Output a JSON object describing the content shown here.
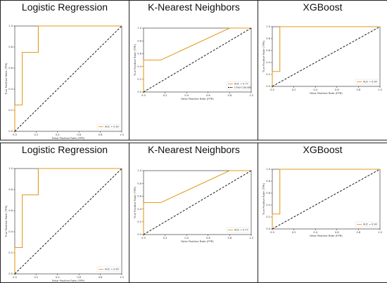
{
  "colors": {
    "roc": "#e59a1e",
    "chance": "#000000",
    "frame": "#222222"
  },
  "chart_data": [
    {
      "type": "line",
      "title": "Logistic Regression",
      "xlabel": "False Positive Rate (FPR)",
      "ylabel": "True Positive Rate (TPR)",
      "xlim": [
        0,
        1
      ],
      "ylim": [
        0,
        1
      ],
      "xticks": [
        "0.0",
        "0.2",
        "0.4",
        "0.6",
        "0.8",
        "1.0"
      ],
      "yticks": [
        "0.0",
        "0.2",
        "0.4",
        "0.6",
        "0.8",
        "1.0"
      ],
      "series": [
        {
          "name": "AUC = 0.90",
          "x": [
            0,
            0,
            0.07,
            0.07,
            0.22,
            0.22,
            1
          ],
          "y": [
            0,
            0.25,
            0.25,
            0.75,
            0.75,
            1.0,
            1.0
          ]
        },
        {
          "x": [
            0,
            1
          ],
          "y": [
            0,
            1
          ]
        }
      ],
      "legend": "lower-right",
      "grid": false
    },
    {
      "type": "line",
      "title": "K-Nearest Neighbors",
      "xlabel": "False Positive Rate (FPR)",
      "ylabel": "True Positive Rate (TPR)",
      "xlim": [
        0,
        1
      ],
      "ylim": [
        0,
        1
      ],
      "xticks": [
        "0.0",
        "0.2",
        "0.4",
        "0.6",
        "0.8",
        "1.0"
      ],
      "yticks": [
        "0.0",
        "0.2",
        "0.4",
        "0.6",
        "0.8",
        "1.0"
      ],
      "series": [
        {
          "name": "AUC = 0.77",
          "x": [
            0,
            0,
            0.16,
            0.8,
            1
          ],
          "y": [
            0,
            0.5,
            0.5,
            1.0,
            1.0
          ]
        },
        {
          "name": "Linea Casuale",
          "x": [
            0,
            1
          ],
          "y": [
            0,
            1
          ]
        }
      ],
      "legend": "lower-right",
      "grid": false
    },
    {
      "type": "line",
      "title": "XGBoost",
      "xlabel": "False Positive Rate (FPR)",
      "ylabel": "True Positive Rate (TPR)",
      "xlim": [
        0,
        1
      ],
      "ylim": [
        0,
        1
      ],
      "xticks": [
        "0.0",
        "0.2",
        "0.4",
        "0.6",
        "0.8",
        "1.0"
      ],
      "yticks": [
        "0.0",
        "0.2",
        "0.4",
        "0.6",
        "0.8",
        "1.0"
      ],
      "series": [
        {
          "name": "AUC = 0.94",
          "x": [
            0,
            0,
            0.07,
            0.07,
            1
          ],
          "y": [
            0,
            0.25,
            0.25,
            1.0,
            1.0
          ]
        },
        {
          "x": [
            0,
            1
          ],
          "y": [
            0,
            1
          ]
        }
      ],
      "legend": "lower-right",
      "grid": false
    },
    {
      "type": "line",
      "title": "Logistic Regression",
      "xlabel": "False Positive Rate (FPR)",
      "ylabel": "True Positive Rate (TPR)",
      "xlim": [
        0,
        1
      ],
      "ylim": [
        0,
        1
      ],
      "xticks": [
        "0.0",
        "0.2",
        "0.4",
        "0.6",
        "0.8",
        "1.0"
      ],
      "yticks": [
        "0.0",
        "0.2",
        "0.4",
        "0.6",
        "0.8",
        "1.0"
      ],
      "series": [
        {
          "name": "AUC = 0.90",
          "x": [
            0,
            0,
            0.07,
            0.07,
            0.22,
            0.22,
            1
          ],
          "y": [
            0,
            0.25,
            0.25,
            0.75,
            0.75,
            1.0,
            1.0
          ]
        },
        {
          "x": [
            0,
            1
          ],
          "y": [
            0,
            1
          ]
        }
      ],
      "legend": "lower-right",
      "grid": false
    },
    {
      "type": "line",
      "title": "K-Nearest Neighbors",
      "xlabel": "False Positive Rate (FPR)",
      "ylabel": "True Positive Rate (TPR)",
      "xlim": [
        0,
        1
      ],
      "ylim": [
        0,
        1
      ],
      "xticks": [
        "0.0",
        "0.2",
        "0.4",
        "0.6",
        "0.8",
        "1.0"
      ],
      "yticks": [
        "0.0",
        "0.2",
        "0.4",
        "0.6",
        "0.8",
        "1.0"
      ],
      "series": [
        {
          "name": "AUC = 0.77",
          "x": [
            0,
            0,
            0.16,
            0.8,
            1
          ],
          "y": [
            0,
            0.5,
            0.5,
            1.0,
            1.0
          ]
        },
        {
          "x": [
            0,
            1
          ],
          "y": [
            0,
            1
          ]
        }
      ],
      "legend": "lower-right",
      "grid": false
    },
    {
      "type": "line",
      "title": "XGBoost",
      "xlabel": "False Positive Rate (FPR)",
      "ylabel": "True Positive Rate (TPR)",
      "xlim": [
        0,
        1
      ],
      "ylim": [
        0,
        1
      ],
      "xticks": [
        "0.0",
        "0.2",
        "0.4",
        "0.6",
        "0.8",
        "1.0"
      ],
      "yticks": [
        "0.0",
        "0.2",
        "0.4",
        "0.6",
        "0.8",
        "1.0"
      ],
      "series": [
        {
          "name": "AUC = 0.94",
          "x": [
            0,
            0,
            0.07,
            0.07,
            1
          ],
          "y": [
            0,
            0.25,
            0.25,
            1.0,
            1.0
          ]
        },
        {
          "x": [
            0,
            1
          ],
          "y": [
            0,
            1
          ]
        }
      ],
      "legend": "lower-right",
      "grid": false
    }
  ]
}
